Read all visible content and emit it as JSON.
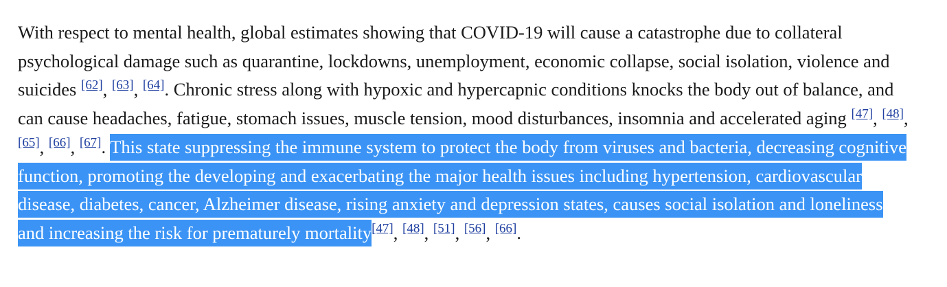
{
  "paragraph": {
    "text_before": "With respect to mental health, global estimates showing that COVID-19 will cause a catastrophe due to collateral psychological damage such as quarantine, lockdowns, unemployment, economic collapse, social isolation, violence and suicides ",
    "citations_group_1": [
      "[62]",
      "[63]",
      "[64]"
    ],
    "text_middle": ". Chronic stress along with hypoxic and hypercapnic conditions knocks the body out of balance, and can cause headaches, fatigue, stomach issues, muscle tension, mood disturbances, insomnia and accelerated aging ",
    "citations_group_2": [
      "[47]",
      "[48]",
      "[65]",
      "[66]",
      "[67]"
    ],
    "text_after_group_2": ". ",
    "selected_text": "This state suppressing the immune system to protect the body from viruses and bacteria, decreasing cognitive function, promoting the developing and exacerbating the major health issues including hypertension, cardiovascular disease, diabetes, cancer, Alzheimer disease, rising anxiety and depression states, causes social isolation and loneliness and increasing the risk for prematurely mortality",
    "citations_group_3": [
      "[47]",
      "[48]",
      "[51]",
      "[56]",
      "[66]"
    ],
    "text_end": ".",
    "separator": ", "
  },
  "colors": {
    "selection_background": "#3b94f5",
    "selection_text": "#ffffff",
    "link": "#1f3fa0",
    "body_text": "#1a1a1a"
  }
}
